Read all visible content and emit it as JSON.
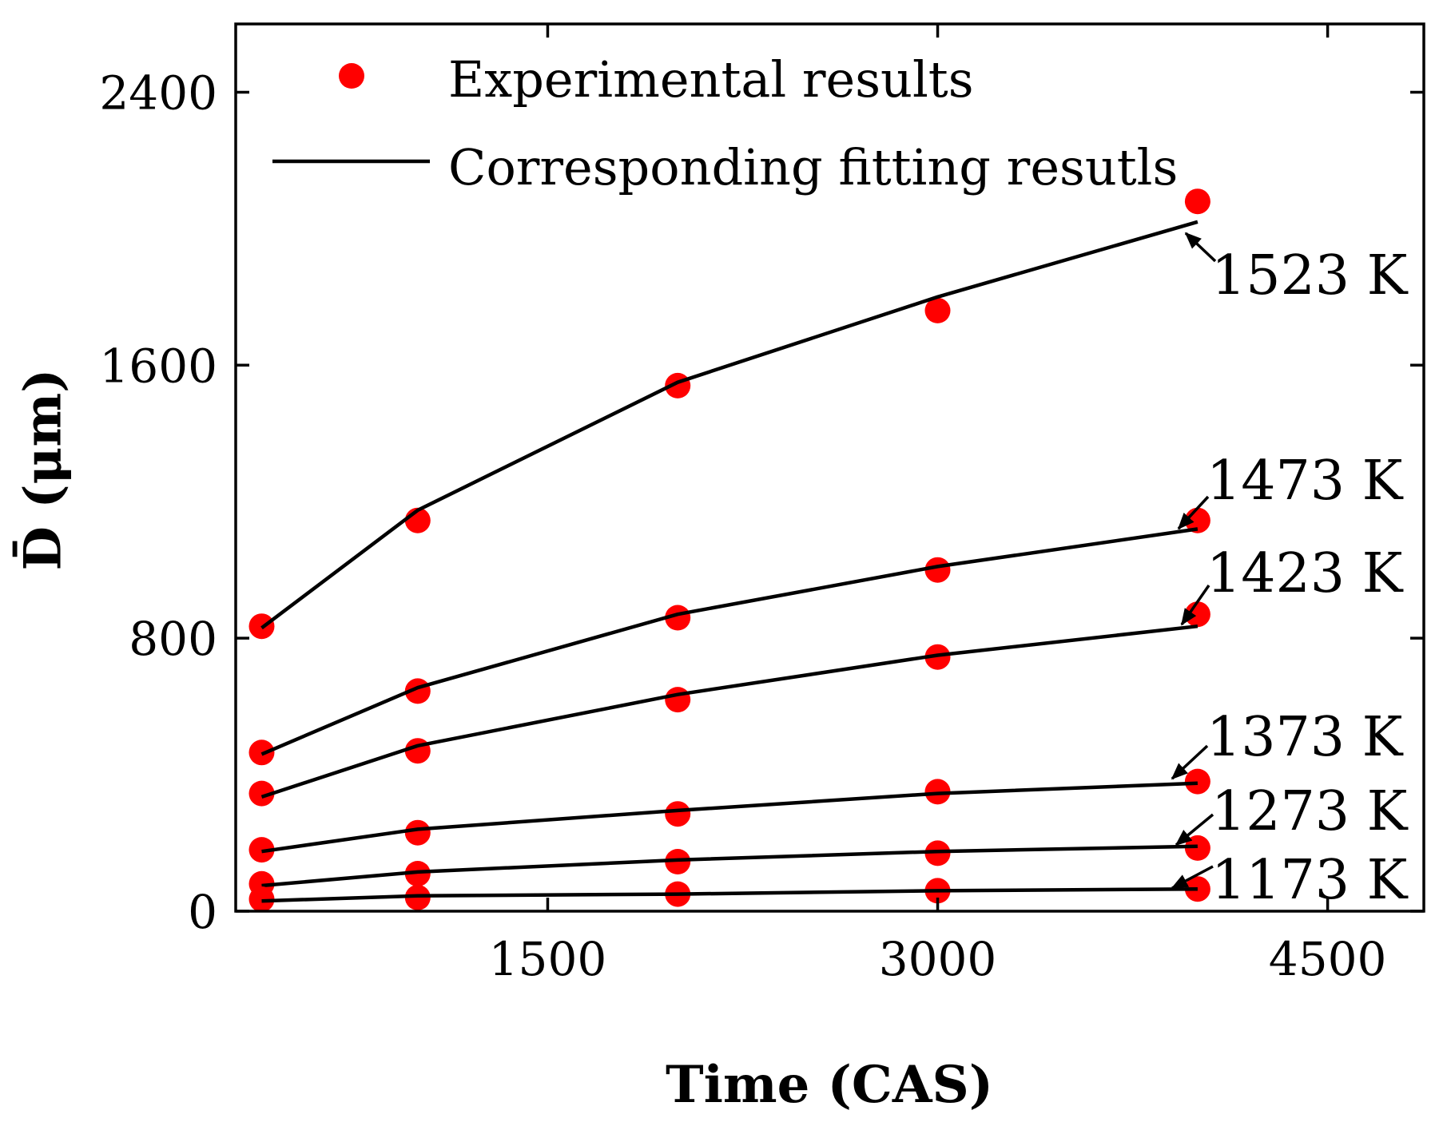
{
  "chart_data": {
    "type": "scatter",
    "xlabel": "Time (CAS)",
    "ylabel": "D̄ (μm)",
    "xlim": [
      300,
      4870
    ],
    "ylim": [
      0,
      2600
    ],
    "xticks": [
      1500,
      3000,
      4500
    ],
    "yticks": [
      0,
      800,
      1600,
      2400
    ],
    "grid": false,
    "legend": {
      "position": "top-left",
      "entries": [
        {
          "label": "Experimental results",
          "marker": "circle",
          "color": "#ff0000"
        },
        {
          "label": "Corresponding fitting resutls",
          "marker": "line",
          "color": "#000000"
        }
      ]
    },
    "x": [
      400,
      1000,
      2000,
      3000,
      4000
    ],
    "series": [
      {
        "name": "1523 K",
        "experimental": [
          835,
          1145,
          1540,
          1760,
          2080
        ],
        "fitting": [
          830,
          1175,
          1550,
          1800,
          2020
        ]
      },
      {
        "name": "1473 K",
        "experimental": [
          465,
          645,
          860,
          1000,
          1145
        ],
        "fitting": [
          460,
          655,
          870,
          1010,
          1120
        ]
      },
      {
        "name": "1423 K",
        "experimental": [
          345,
          470,
          620,
          745,
          870
        ],
        "fitting": [
          335,
          485,
          635,
          750,
          835
        ]
      },
      {
        "name": "1373 K",
        "experimental": [
          180,
          230,
          285,
          350,
          380
        ],
        "fitting": [
          175,
          240,
          295,
          345,
          375
        ]
      },
      {
        "name": "1273 K",
        "experimental": [
          80,
          110,
          145,
          170,
          185
        ],
        "fitting": [
          75,
          115,
          150,
          175,
          190
        ]
      },
      {
        "name": "1173 K",
        "experimental": [
          35,
          40,
          50,
          60,
          65
        ],
        "fitting": [
          30,
          45,
          50,
          60,
          65
        ]
      }
    ]
  }
}
